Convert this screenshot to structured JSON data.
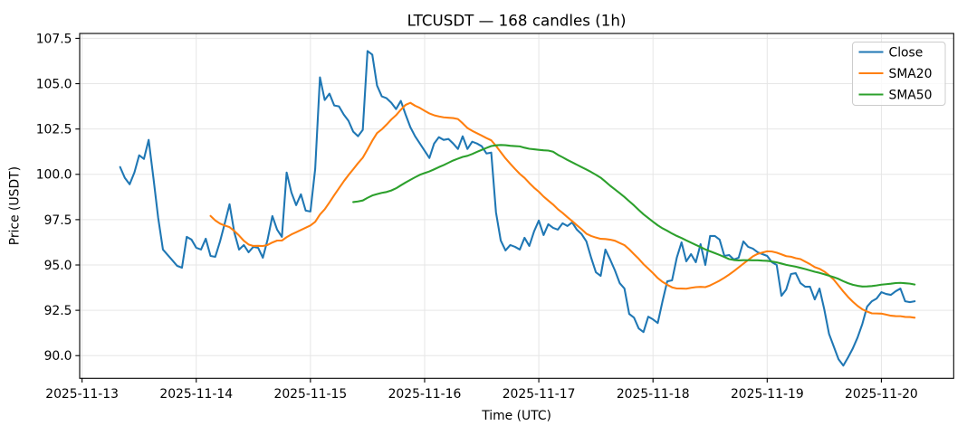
{
  "title": "LTCUSDT — 168 candles (1h)",
  "axes": {
    "xlabel": "Time (UTC)",
    "ylabel": "Price (USDT)"
  },
  "legend": {
    "location": "upper right",
    "items": [
      {
        "label": "Close",
        "color": "#1f77b4"
      },
      {
        "label": "SMA20",
        "color": "#ff7f0e"
      },
      {
        "label": "SMA50",
        "color": "#2ca02c"
      }
    ]
  },
  "chart_data": {
    "type": "line",
    "title": "LTCUSDT — 168 candles (1h)",
    "xlabel": "Time (UTC)",
    "ylabel": "Price (USDT)",
    "x_unit": "hours",
    "x_start": "2025-11-13 08:00 UTC",
    "x_step": 1,
    "n_points": 168,
    "x_tick_labels": [
      "2025-11-13",
      "2025-11-14",
      "2025-11-15",
      "2025-11-16",
      "2025-11-17",
      "2025-11-18",
      "2025-11-19",
      "2025-11-20"
    ],
    "x_tick_hours": [
      -8,
      16,
      40,
      64,
      88,
      112,
      136,
      160
    ],
    "y_ticks": [
      90.0,
      92.5,
      95.0,
      97.5,
      100.0,
      102.5,
      105.0,
      107.5
    ],
    "ylim": [
      88.75,
      107.77
    ],
    "xlim_hours": [
      -8.5,
      175.2
    ],
    "grid": true,
    "legend_position": "upper right",
    "series": [
      {
        "name": "Close",
        "color": "#1f77b4",
        "values": [
          100.4,
          99.8,
          99.45,
          100.1,
          101.05,
          100.85,
          101.9,
          99.8,
          97.6,
          95.85,
          95.55,
          95.25,
          94.95,
          94.85,
          96.55,
          96.4,
          95.95,
          95.85,
          96.45,
          95.5,
          95.45,
          96.3,
          97.3,
          98.35,
          96.8,
          95.85,
          96.1,
          95.7,
          96.0,
          95.95,
          95.4,
          96.4,
          97.7,
          96.95,
          96.55,
          100.1,
          99.0,
          98.3,
          98.9,
          98.0,
          97.95,
          100.3,
          105.35,
          104.1,
          104.45,
          103.8,
          103.75,
          103.3,
          102.95,
          102.35,
          102.1,
          102.45,
          106.8,
          106.6,
          104.9,
          104.3,
          104.2,
          103.95,
          103.6,
          104.05,
          103.3,
          102.6,
          102.1,
          101.7,
          101.3,
          100.9,
          101.7,
          102.05,
          101.9,
          101.95,
          101.7,
          101.4,
          102.1,
          101.4,
          101.8,
          101.7,
          101.55,
          101.15,
          101.2,
          97.9,
          96.35,
          95.8,
          96.1,
          96.0,
          95.85,
          96.5,
          96.05,
          96.85,
          97.45,
          96.65,
          97.25,
          97.05,
          96.95,
          97.3,
          97.15,
          97.35,
          96.95,
          96.7,
          96.3,
          95.4,
          94.6,
          94.4,
          95.85,
          95.3,
          94.7,
          94.0,
          93.7,
          92.3,
          92.1,
          91.5,
          91.3,
          92.15,
          92.0,
          91.8,
          93.0,
          94.1,
          94.15,
          95.4,
          96.25,
          95.2,
          95.6,
          95.15,
          96.15,
          95.0,
          96.6,
          96.6,
          96.4,
          95.5,
          95.55,
          95.3,
          95.4,
          96.3,
          96.0,
          95.9,
          95.7,
          95.6,
          95.5,
          95.15,
          95.0,
          93.3,
          93.65,
          94.5,
          94.55,
          94.0,
          93.8,
          93.8,
          93.1,
          93.7,
          92.55,
          91.2,
          90.5,
          89.8,
          89.45,
          89.9,
          90.4,
          91.0,
          91.75,
          92.7,
          93.0,
          93.15,
          93.5,
          93.4,
          93.35,
          93.55,
          93.7,
          93.0,
          92.95,
          93.0
        ]
      },
      {
        "name": "SMA20",
        "color": "#ff7f0e",
        "derived_from": "Close",
        "method": "simple_moving_average",
        "window": 20
      },
      {
        "name": "SMA50",
        "color": "#2ca02c",
        "derived_from": "Close",
        "method": "simple_moving_average",
        "window": 50
      }
    ]
  }
}
